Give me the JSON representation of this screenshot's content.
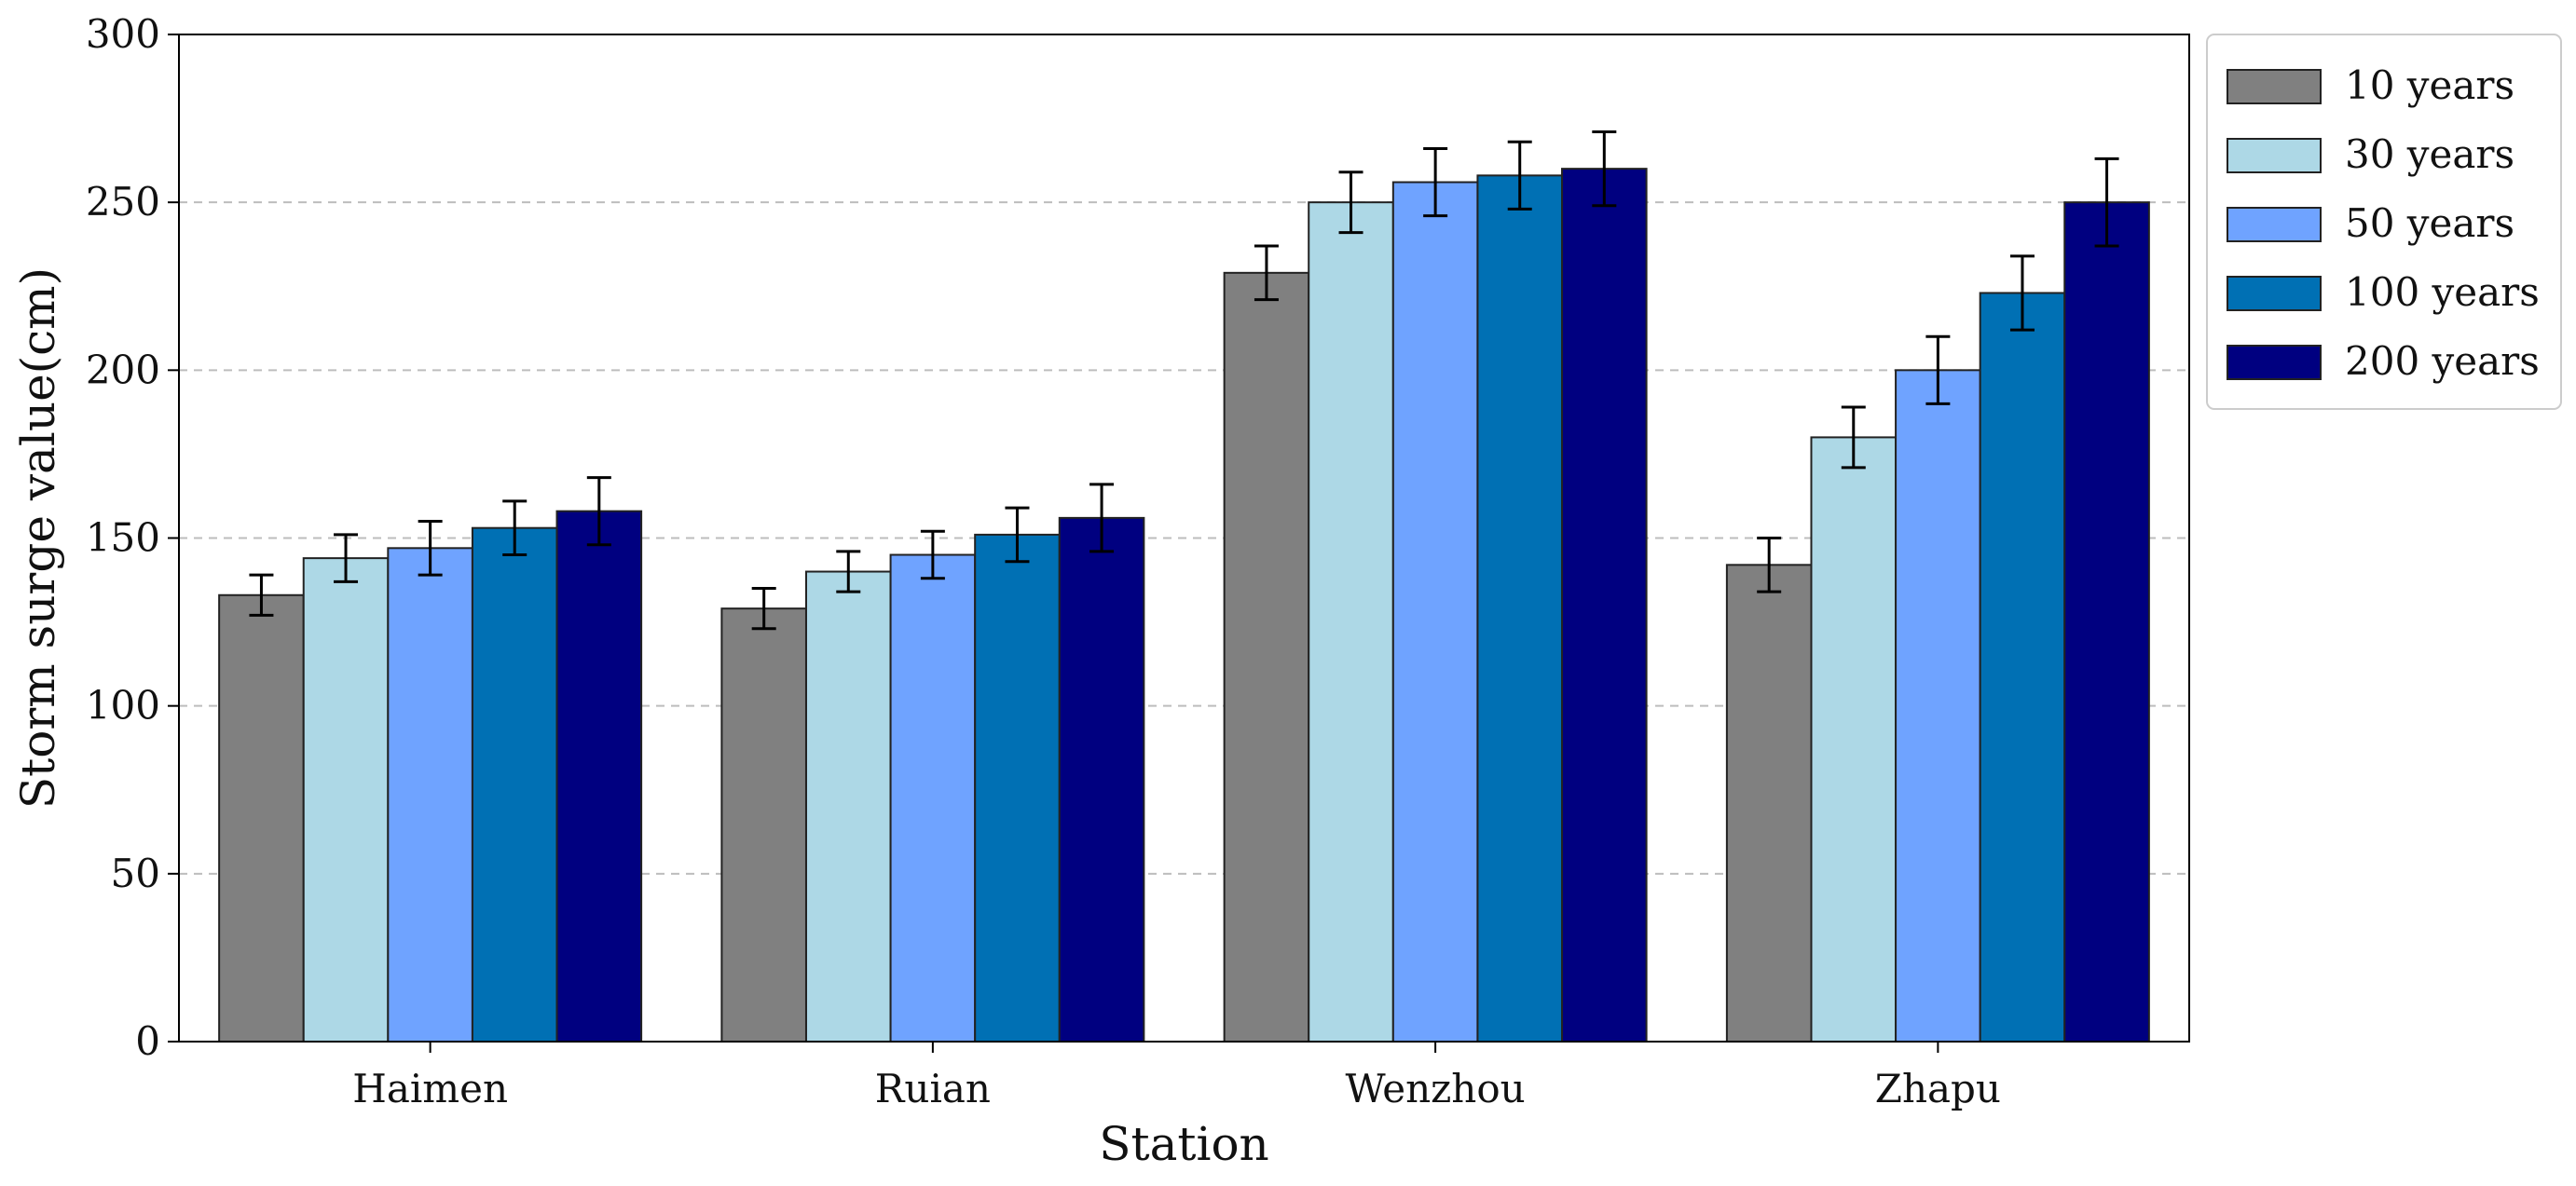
{
  "chart_data": {
    "type": "bar",
    "title": "",
    "xlabel": "Station",
    "ylabel": "Storm surge value(cm)",
    "ylim": [
      0,
      300
    ],
    "yticks": [
      0,
      50,
      100,
      150,
      200,
      250,
      300
    ],
    "grid": "y-dashed",
    "legend_position": "outside-right-top",
    "categories": [
      "Haimen",
      "Ruian",
      "Wenzhou",
      "Zhapu"
    ],
    "series": [
      {
        "name": "10 years",
        "color": "#808080",
        "values": [
          133,
          129,
          229,
          142
        ],
        "error": [
          6,
          6,
          8,
          8
        ]
      },
      {
        "name": "30 years",
        "color": "#add8e6",
        "values": [
          144,
          140,
          250,
          180
        ],
        "error": [
          7,
          6,
          9,
          9
        ]
      },
      {
        "name": "50 years",
        "color": "#6fa3ff",
        "values": [
          147,
          145,
          256,
          200
        ],
        "error": [
          8,
          7,
          10,
          10
        ]
      },
      {
        "name": "100 years",
        "color": "#0070b4",
        "values": [
          153,
          151,
          258,
          223
        ],
        "error": [
          8,
          8,
          10,
          11
        ]
      },
      {
        "name": "200 years",
        "color": "#000080",
        "values": [
          158,
          156,
          260,
          250
        ],
        "error": [
          10,
          10,
          11,
          13
        ]
      }
    ]
  }
}
